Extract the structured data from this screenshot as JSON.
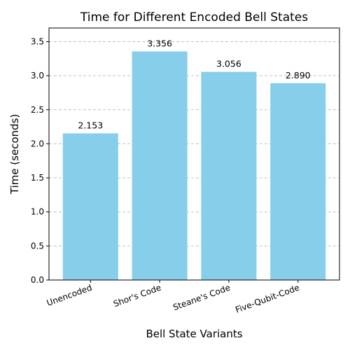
{
  "chart_data": {
    "type": "bar",
    "title": "Time for Different Encoded Bell States",
    "xlabel": "Bell State Variants",
    "ylabel": "Time (seconds)",
    "categories": [
      "Unencoded",
      "Shor's Code",
      "Steane's Code",
      "Five-Qubit-Code"
    ],
    "values": [
      2.153,
      3.356,
      3.056,
      2.89
    ],
    "data_labels": [
      "2.153",
      "3.356",
      "3.056",
      "2.890"
    ],
    "ylim": [
      0,
      3.7
    ],
    "yticks": [
      0.0,
      0.5,
      1.0,
      1.5,
      2.0,
      2.5,
      3.0,
      3.5
    ],
    "ytick_labels": [
      "0.0",
      "0.5",
      "1.0",
      "1.5",
      "2.0",
      "2.5",
      "3.0",
      "3.5"
    ],
    "grid": "y-axis dashed",
    "bar_color": "#87CEEB",
    "xtick_rotation_deg": 20
  }
}
